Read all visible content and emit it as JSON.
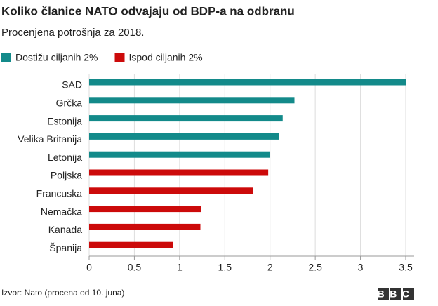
{
  "chart_data": {
    "type": "bar",
    "orientation": "horizontal",
    "title": "Koliko članice NATO odvajaju od BDP-a na odbranu",
    "subtitle": "Procenjena potrošnja za 2018.",
    "categories": [
      "SAD",
      "Grčka",
      "Estonija",
      "Velika Britanija",
      "Letonija",
      "Poljska",
      "Francuska",
      "Nemačka",
      "Kanada",
      "Španija"
    ],
    "series": [
      {
        "name": "Dostižu ciljanih 2%",
        "color": "#138a8a",
        "values": [
          3.5,
          2.27,
          2.14,
          2.1,
          2.0,
          null,
          null,
          null,
          null,
          null
        ]
      },
      {
        "name": "Ispod ciljanih 2%",
        "color": "#cc0a0a",
        "values": [
          null,
          null,
          null,
          null,
          null,
          1.98,
          1.81,
          1.24,
          1.23,
          0.93
        ]
      }
    ],
    "xlim": [
      0,
      3.5
    ],
    "xticks": [
      0,
      0.5,
      1,
      1.5,
      2,
      2.5,
      3,
      3.5
    ],
    "grid": true,
    "legend": "top-left",
    "source": "Izvor: Nato (procena od 10. juna)",
    "logo": "BBC"
  }
}
